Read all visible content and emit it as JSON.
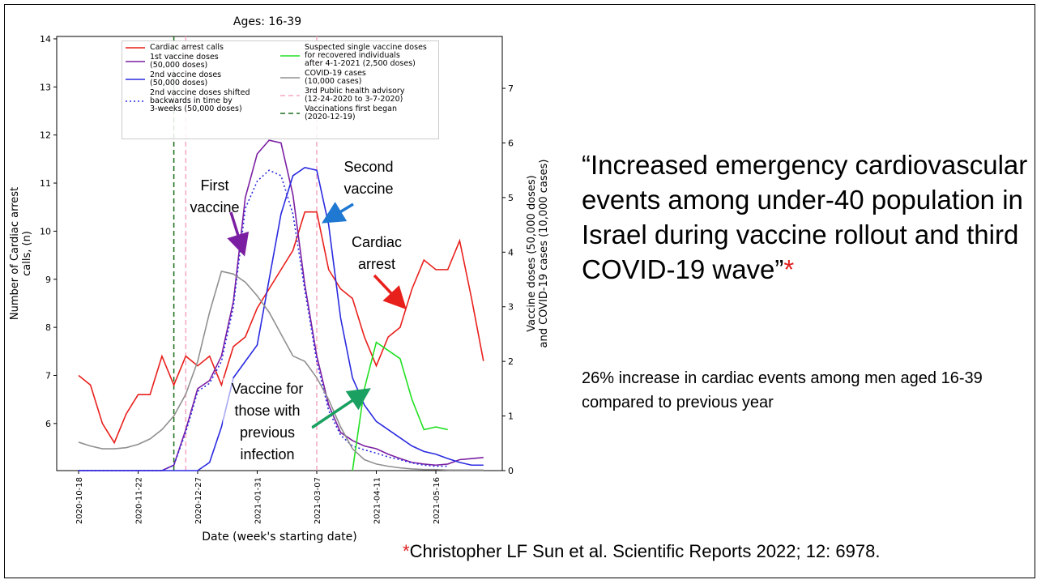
{
  "title_text": "“Increased emergency cardiovascular events among under-40 population in Israel during vaccine rollout and third COVID-19 wave”",
  "title_asterisk": "*",
  "subtext": "26% increase in cardiac events among men aged 16-39 compared to previous year",
  "citation_asterisk": "*",
  "citation": "Christopher LF Sun et al.  Scientific Reports 2022; 12: 6978.",
  "chart_data": {
    "type": "line",
    "title": "Ages: 16-39",
    "x_label": "Date (week's starting date)",
    "y_label": "Number of Cardiac arrest\ncalls, (n)",
    "y2_label": "Vaccine doses (50,000 doses)\nand COVID-19 cases (10,000 cases)",
    "categories": [
      "2020-10-18",
      null,
      null,
      null,
      null,
      "2020-11-22",
      null,
      null,
      null,
      null,
      "2020-12-27",
      null,
      null,
      null,
      null,
      "2021-01-31",
      null,
      null,
      null,
      null,
      "2021-03-07",
      null,
      null,
      null,
      null,
      "2021-04-11",
      null,
      null,
      null,
      null,
      "2021-05-16",
      null,
      null,
      null,
      null
    ],
    "ylim": [
      5.02,
      14.05
    ],
    "yticks": [
      6,
      7,
      8,
      9,
      10,
      11,
      12,
      13,
      14
    ],
    "y2lim": [
      0,
      7.95
    ],
    "y2ticks": [
      0,
      1,
      2,
      3,
      4,
      5,
      6,
      7
    ],
    "series": [
      {
        "name": "Cardiac arrest calls",
        "color": "#e8201c",
        "style": "solid",
        "values": [
          7.0,
          6.8,
          6.0,
          5.6,
          6.2,
          6.6,
          6.6,
          7.4,
          6.8,
          7.4,
          7.2,
          7.4,
          6.8,
          7.6,
          7.8,
          8.4,
          8.8,
          9.2,
          9.6,
          10.4,
          10.4,
          9.2,
          8.8,
          8.6,
          7.8,
          7.2,
          7.8,
          8.0,
          8.8,
          9.4,
          9.2,
          9.2,
          9.8,
          8.6,
          7.3
        ]
      },
      {
        "name": "1st vaccine doses\n(50,000 doses)",
        "color": "#7b1fa2",
        "style": "solid",
        "axis": "y2",
        "values": [
          0,
          0,
          0,
          0,
          0,
          0,
          0,
          0,
          0.1,
          0.75,
          1.5,
          1.65,
          2.1,
          3.1,
          5.0,
          5.8,
          6.05,
          6.0,
          5.05,
          3.4,
          2.1,
          1.2,
          0.7,
          0.55,
          0.45,
          0.4,
          0.3,
          0.22,
          0.15,
          0.12,
          0.1,
          0.12,
          0.2,
          0.22,
          0.24
        ]
      },
      {
        "name": "2nd vaccine doses\n(50,000 doses)",
        "color": "#2a2ae0",
        "style": "solid",
        "axis": "y2",
        "values": [
          0,
          0,
          0,
          0,
          0,
          0,
          0,
          0,
          0,
          0,
          0,
          0.15,
          0.8,
          1.7,
          2.0,
          2.3,
          3.5,
          4.7,
          5.4,
          5.55,
          5.5,
          4.5,
          2.8,
          1.7,
          1.2,
          0.9,
          0.75,
          0.6,
          0.45,
          0.35,
          0.3,
          0.22,
          0.15,
          0.1,
          0.1
        ]
      },
      {
        "name": "2nd vaccine doses shifted\nbackwards in time by\n3-weeks (50,000 doses)",
        "color": "#2a2ae0",
        "style": "dotted",
        "axis": "y2",
        "values": [
          0,
          0,
          0,
          0,
          0,
          0,
          0,
          0,
          0.1,
          0.7,
          1.45,
          1.6,
          2.0,
          3.0,
          4.8,
          5.3,
          5.5,
          5.4,
          4.7,
          3.3,
          2.0,
          1.1,
          0.65,
          0.45,
          0.38,
          0.32,
          0.25,
          0.2,
          0.14,
          0.1,
          0.08,
          0.08,
          null,
          null,
          null
        ]
      },
      {
        "name": "Suspected single vaccine doses\nfor recovered individuals\nafter 4-1-2021 (2,500 doses)",
        "color": "#22e022",
        "style": "solid",
        "axis": "y2",
        "values": [
          null,
          null,
          null,
          null,
          null,
          null,
          null,
          null,
          null,
          null,
          null,
          null,
          null,
          null,
          null,
          null,
          null,
          null,
          null,
          null,
          null,
          null,
          null,
          0,
          1.5,
          2.35,
          2.2,
          2.05,
          1.3,
          0.75,
          0.8,
          0.75,
          null,
          null,
          null
        ]
      },
      {
        "name": "COVID-19 cases\n(10,000 cases)",
        "color": "#909090",
        "style": "solid",
        "axis": "y2",
        "values": [
          0.52,
          0.45,
          0.4,
          0.4,
          0.42,
          0.48,
          0.58,
          0.75,
          1.0,
          1.4,
          2.0,
          2.9,
          3.65,
          3.6,
          3.45,
          3.2,
          2.9,
          2.5,
          2.1,
          2.0,
          1.7,
          1.3,
          0.8,
          0.4,
          0.2,
          0.12,
          0.08,
          0.05,
          0.03,
          0.02,
          0.02,
          0.01,
          0.01,
          0.01,
          0.01
        ]
      }
    ],
    "vlines": [
      {
        "name": "3rd Public health advisory\n(12-24-2020 to 3-7-2020)",
        "color": "#f4a6c0",
        "x": [
          9,
          20
        ]
      },
      {
        "name": "Vaccinations first began\n(2020-12-19)",
        "color": "#1a6b1a",
        "x": [
          8
        ]
      }
    ],
    "annotations": [
      "First\nvaccine",
      "Second\nvaccine",
      "Cardiac\narrest",
      "Vaccine for\nthose with\nprevious\ninfection"
    ]
  }
}
